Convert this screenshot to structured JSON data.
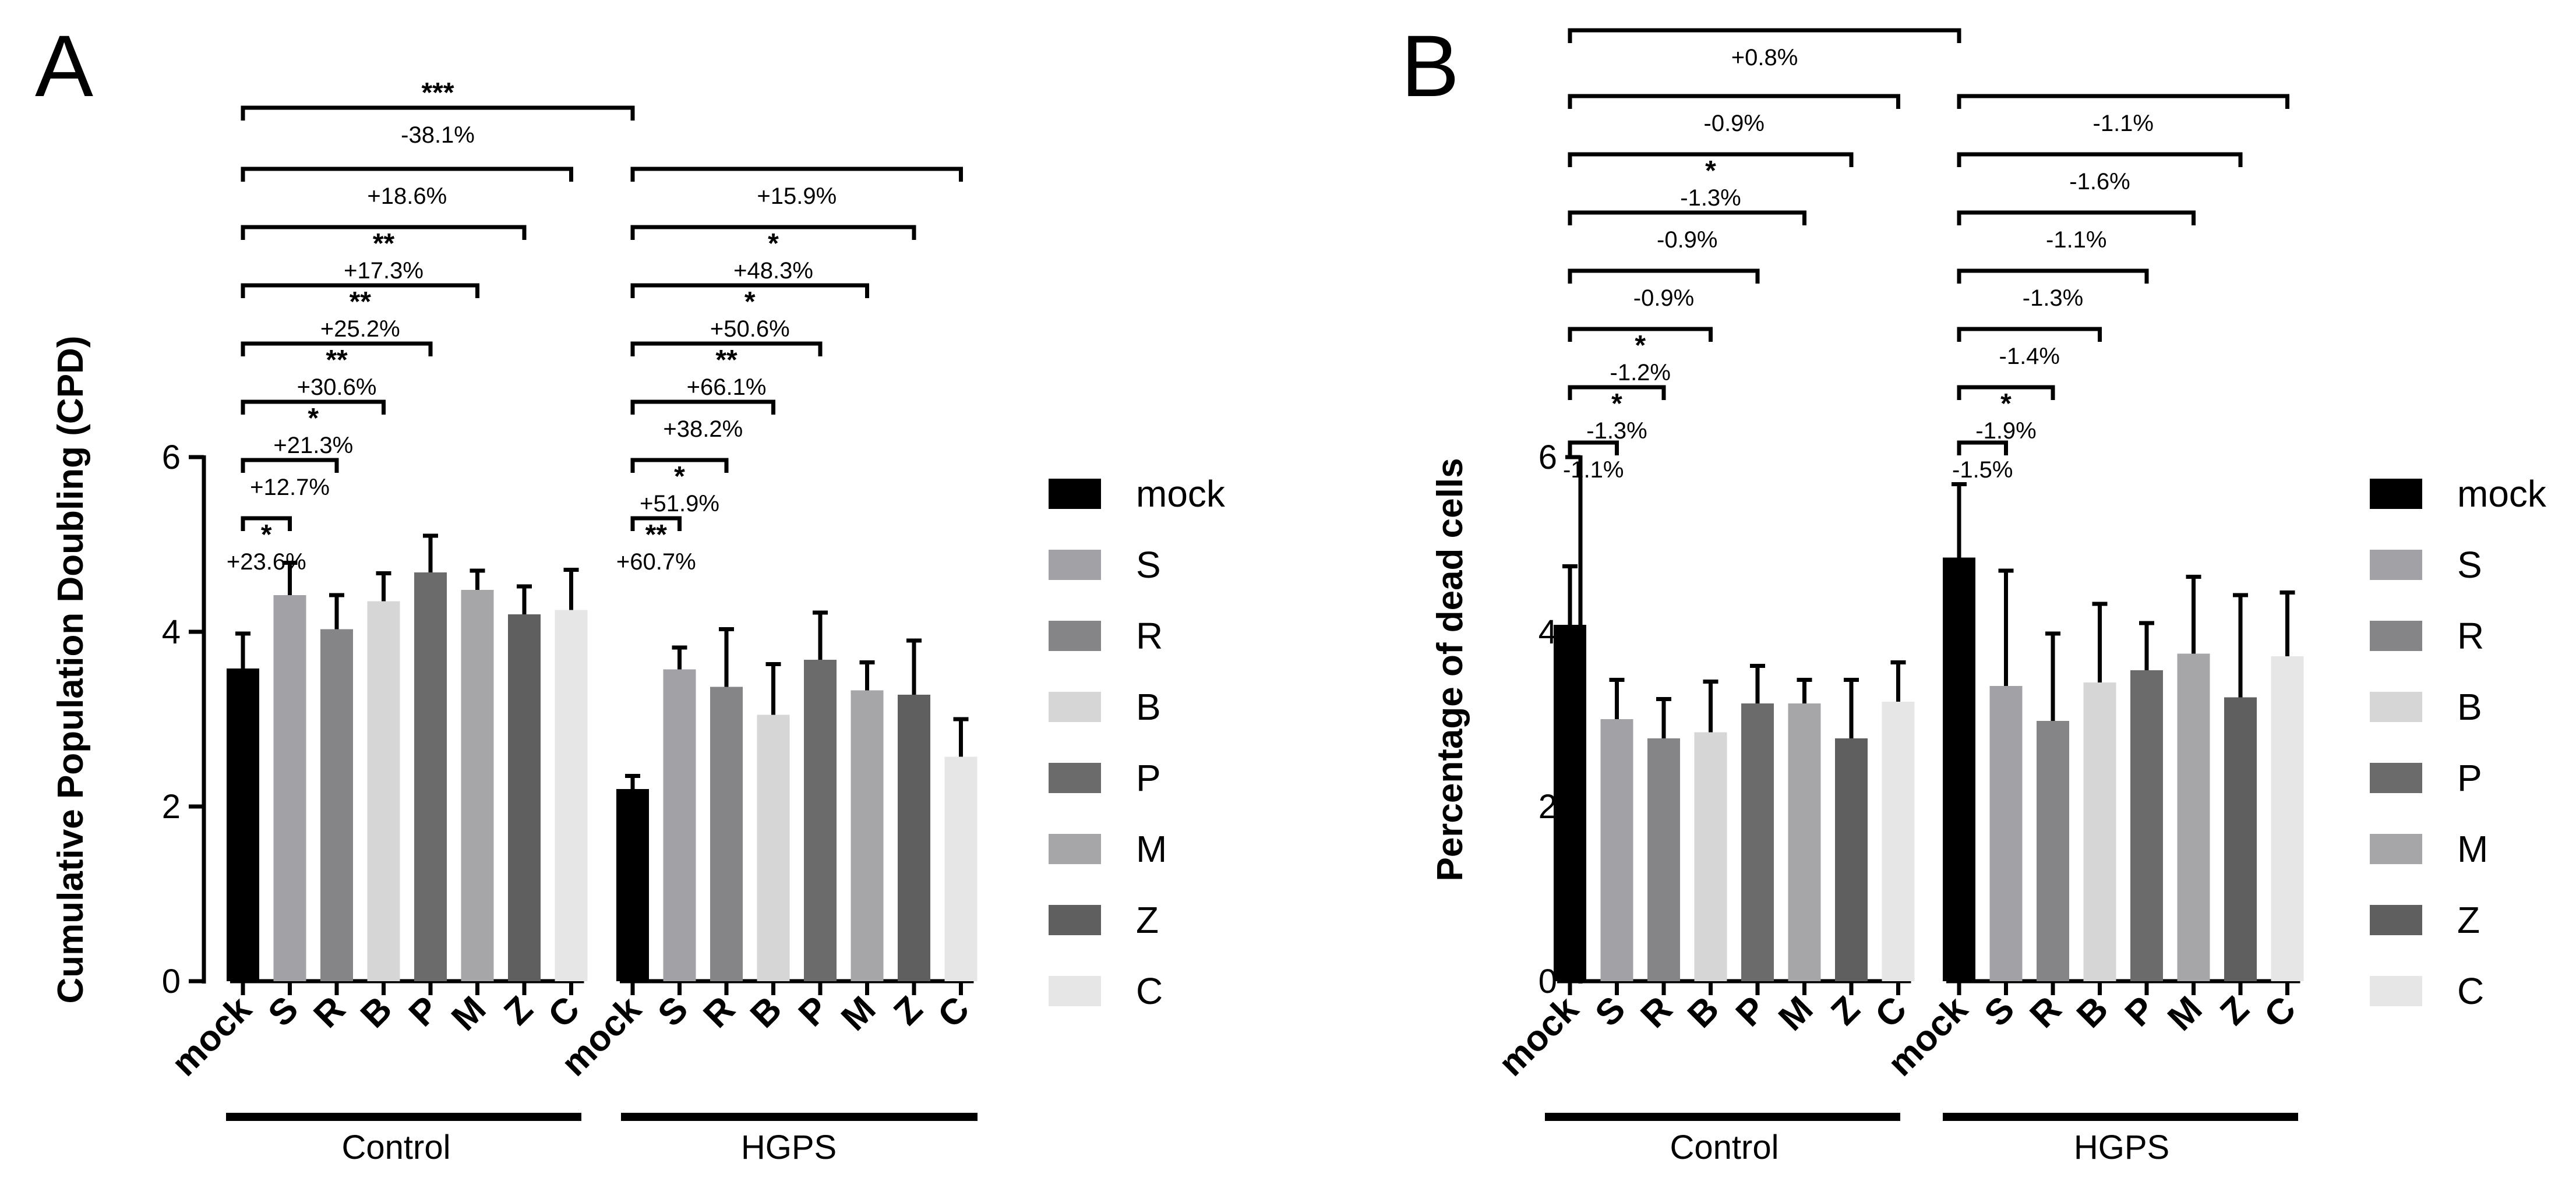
{
  "colors": {
    "mock": "#000000",
    "S": "#a2a1a6",
    "R": "#858588",
    "B": "#d6d6d6",
    "P": "#6b6b6b",
    "M": "#a6a6a8",
    "Z": "#5f5f5f",
    "C": "#e6e6e6"
  },
  "categories": [
    "mock",
    "S",
    "R",
    "B",
    "P",
    "M",
    "Z",
    "C"
  ],
  "legend": [
    "mock",
    "S",
    "R",
    "B",
    "P",
    "M",
    "Z",
    "C"
  ],
  "chart_data": [
    {
      "type": "bar",
      "panel": "A",
      "ylabel": "Cumulative Population Doubling (CPD)",
      "ylim": [
        0,
        6
      ],
      "yticks": [
        0,
        2,
        4,
        6
      ],
      "groups": [
        {
          "name": "Control",
          "categories": [
            "mock",
            "S",
            "R",
            "B",
            "P",
            "M",
            "Z",
            "C"
          ],
          "values": [
            3.58,
            4.42,
            4.03,
            4.35,
            4.68,
            4.48,
            4.2,
            4.25
          ],
          "errors": [
            0.4,
            0.37,
            0.39,
            0.32,
            0.42,
            0.22,
            0.32,
            0.46
          ],
          "comparisons": [
            {
              "to": "S",
              "label": "+23.6%",
              "stars": "*"
            },
            {
              "to": "R",
              "label": "+12.7%",
              "stars": ""
            },
            {
              "to": "B",
              "label": "+21.3%",
              "stars": "*"
            },
            {
              "to": "P",
              "label": "+30.6%",
              "stars": "**"
            },
            {
              "to": "M",
              "label": "+25.2%",
              "stars": "**"
            },
            {
              "to": "Z",
              "label": "+17.3%",
              "stars": "**"
            },
            {
              "to": "C",
              "label": "+18.6%",
              "stars": ""
            }
          ]
        },
        {
          "name": "HGPS",
          "categories": [
            "mock",
            "S",
            "R",
            "B",
            "P",
            "M",
            "Z",
            "C"
          ],
          "values": [
            2.2,
            3.57,
            3.37,
            3.05,
            3.68,
            3.33,
            3.28,
            2.57
          ],
          "errors": [
            0.15,
            0.25,
            0.66,
            0.58,
            0.54,
            0.32,
            0.62,
            0.43
          ],
          "comparisons": [
            {
              "to": "S",
              "label": "+60.7%",
              "stars": "**"
            },
            {
              "to": "R",
              "label": "+51.9%",
              "stars": "*"
            },
            {
              "to": "B",
              "label": "+38.2%",
              "stars": ""
            },
            {
              "to": "P",
              "label": "+66.1%",
              "stars": "**"
            },
            {
              "to": "M",
              "label": "+50.6%",
              "stars": "*"
            },
            {
              "to": "Z",
              "label": "+48.3%",
              "stars": "*"
            },
            {
              "to": "C",
              "label": "+15.9%",
              "stars": ""
            }
          ]
        }
      ],
      "between_groups": {
        "label": "-38.1%",
        "stars": "***"
      }
    },
    {
      "type": "bar",
      "panel": "B",
      "ylabel": "Percentage of dead cells",
      "ylim": [
        0,
        6
      ],
      "yticks": [
        0,
        2,
        4,
        6
      ],
      "groups": [
        {
          "name": "Control",
          "categories": [
            "mock",
            "S",
            "R",
            "B",
            "P",
            "M",
            "Z",
            "C"
          ],
          "values": [
            4.08,
            3.0,
            2.78,
            2.85,
            3.18,
            3.18,
            2.78,
            3.2
          ],
          "errors": [
            0.67,
            0.45,
            0.45,
            0.58,
            0.43,
            0.27,
            0.67,
            0.45
          ],
          "comparisons": [
            {
              "to": "S",
              "label": "-1.1%",
              "stars": ""
            },
            {
              "to": "R",
              "label": "-1.3%",
              "stars": "*"
            },
            {
              "to": "B",
              "label": "-1.2%",
              "stars": "*"
            },
            {
              "to": "P",
              "label": "-0.9%",
              "stars": ""
            },
            {
              "to": "M",
              "label": "-0.9%",
              "stars": ""
            },
            {
              "to": "Z",
              "label": "-1.3%",
              "stars": "*"
            },
            {
              "to": "C",
              "label": "-0.9%",
              "stars": ""
            }
          ]
        },
        {
          "name": "HGPS",
          "categories": [
            "mock",
            "S",
            "R",
            "B",
            "P",
            "M",
            "Z",
            "C"
          ],
          "values": [
            4.85,
            3.38,
            2.98,
            3.42,
            3.56,
            3.75,
            3.25,
            3.72
          ],
          "errors": [
            0.84,
            1.32,
            1.0,
            0.9,
            0.54,
            0.88,
            1.17,
            0.73
          ],
          "comparisons": [
            {
              "to": "S",
              "label": "-1.5%",
              "stars": ""
            },
            {
              "to": "R",
              "label": "-1.9%",
              "stars": "*"
            },
            {
              "to": "B",
              "label": "-1.4%",
              "stars": ""
            },
            {
              "to": "P",
              "label": "-1.3%",
              "stars": ""
            },
            {
              "to": "M",
              "label": "-1.1%",
              "stars": ""
            },
            {
              "to": "Z",
              "label": "-1.6%",
              "stars": ""
            },
            {
              "to": "C",
              "label": "-1.1%",
              "stars": ""
            }
          ]
        }
      ],
      "between_groups": {
        "label": "+0.8%",
        "stars": ""
      }
    }
  ]
}
